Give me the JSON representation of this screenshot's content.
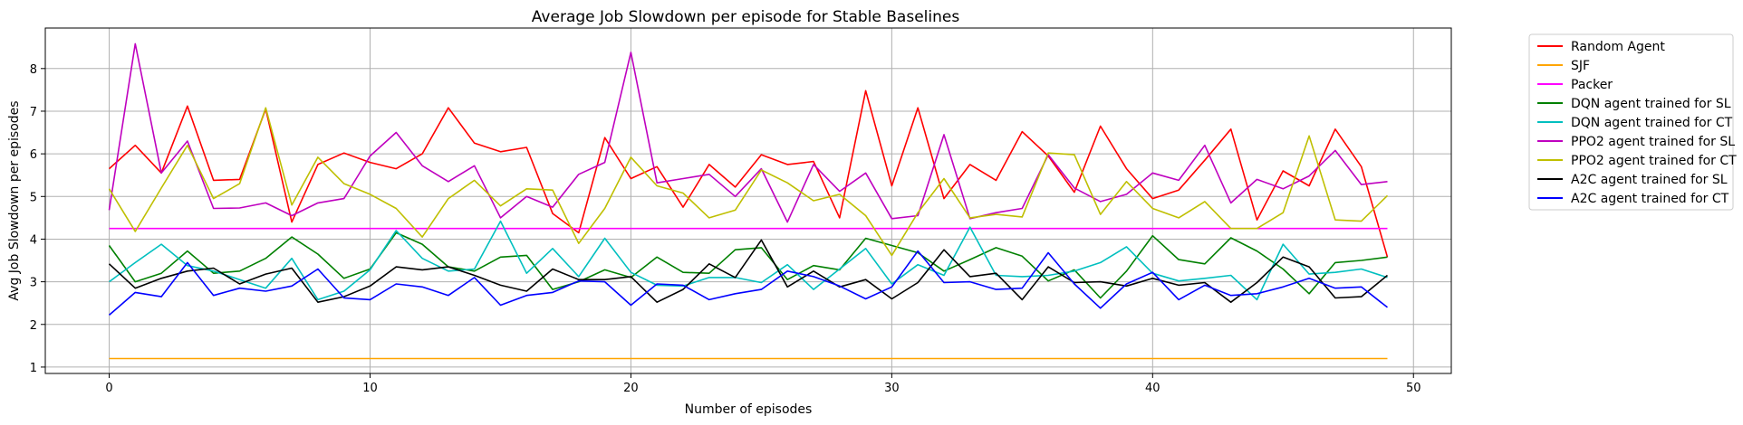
{
  "chart_data": {
    "type": "line",
    "title": "Average Job Slowdown per episode for Stable Baselines",
    "xlabel": "Number of episodes",
    "ylabel": "Avg Job Slowdown per episodes",
    "xlim": [
      -2.45,
      51.45
    ],
    "ylim": [
      0.85,
      8.95
    ],
    "xticks": [
      0,
      10,
      20,
      30,
      40,
      50
    ],
    "yticks": [
      1,
      2,
      3,
      4,
      5,
      6,
      7,
      8
    ],
    "grid": true,
    "legend_position": "outside-top-right",
    "x": [
      0,
      1,
      2,
      3,
      4,
      5,
      6,
      7,
      8,
      9,
      10,
      11,
      12,
      13,
      14,
      15,
      16,
      17,
      18,
      19,
      20,
      21,
      22,
      23,
      24,
      25,
      26,
      27,
      28,
      29,
      30,
      31,
      32,
      33,
      34,
      35,
      36,
      37,
      38,
      39,
      40,
      41,
      42,
      43,
      44,
      45,
      46,
      47,
      48,
      49
    ],
    "series": [
      {
        "name": "Random Agent",
        "color": "#ff0000",
        "values": [
          5.65,
          6.2,
          5.55,
          7.12,
          5.38,
          5.4,
          7.05,
          4.4,
          5.75,
          6.02,
          5.8,
          5.65,
          6.0,
          7.08,
          6.25,
          6.05,
          6.15,
          4.6,
          4.15,
          6.38,
          5.42,
          5.7,
          4.75,
          5.75,
          5.22,
          5.98,
          5.75,
          5.82,
          4.5,
          7.48,
          5.25,
          7.08,
          4.95,
          5.75,
          5.38,
          6.52,
          5.95,
          5.1,
          6.65,
          5.65,
          4.95,
          5.15,
          5.85,
          6.58,
          4.45,
          5.6,
          5.25,
          6.58,
          5.7,
          3.58
        ]
      },
      {
        "name": "SJF",
        "color": "#ffa500",
        "values": [
          1.2,
          1.2,
          1.2,
          1.2,
          1.2,
          1.2,
          1.2,
          1.2,
          1.2,
          1.2,
          1.2,
          1.2,
          1.2,
          1.2,
          1.2,
          1.2,
          1.2,
          1.2,
          1.2,
          1.2,
          1.2,
          1.2,
          1.2,
          1.2,
          1.2,
          1.2,
          1.2,
          1.2,
          1.2,
          1.2,
          1.2,
          1.2,
          1.2,
          1.2,
          1.2,
          1.2,
          1.2,
          1.2,
          1.2,
          1.2,
          1.2,
          1.2,
          1.2,
          1.2,
          1.2,
          1.2,
          1.2,
          1.2,
          1.2,
          1.2
        ]
      },
      {
        "name": "Packer",
        "color": "#ff00ff",
        "values": [
          4.25,
          4.25,
          4.25,
          4.25,
          4.25,
          4.25,
          4.25,
          4.25,
          4.25,
          4.25,
          4.25,
          4.25,
          4.25,
          4.25,
          4.25,
          4.25,
          4.25,
          4.25,
          4.25,
          4.25,
          4.25,
          4.25,
          4.25,
          4.25,
          4.25,
          4.25,
          4.25,
          4.25,
          4.25,
          4.25,
          4.25,
          4.25,
          4.25,
          4.25,
          4.25,
          4.25,
          4.25,
          4.25,
          4.25,
          4.25,
          4.25,
          4.25,
          4.25,
          4.25,
          4.25,
          4.25,
          4.25,
          4.25,
          4.25,
          4.25
        ]
      },
      {
        "name": "DQN agent trained for SL",
        "color": "#008000",
        "values": [
          3.85,
          3.0,
          3.2,
          3.72,
          3.2,
          3.25,
          3.55,
          4.05,
          3.65,
          3.08,
          3.3,
          4.15,
          3.88,
          3.35,
          3.25,
          3.58,
          3.62,
          2.82,
          3.0,
          3.28,
          3.1,
          3.58,
          3.22,
          3.2,
          3.75,
          3.8,
          3.05,
          3.38,
          3.28,
          4.02,
          3.85,
          3.68,
          3.25,
          3.52,
          3.8,
          3.6,
          3.02,
          3.28,
          2.62,
          3.25,
          4.08,
          3.52,
          3.42,
          4.03,
          3.72,
          3.3,
          2.72,
          3.45,
          3.5,
          3.58
        ]
      },
      {
        "name": "DQN agent trained for CT",
        "color": "#00bfbf",
        "values": [
          3.0,
          3.45,
          3.88,
          3.38,
          3.25,
          3.05,
          2.85,
          3.55,
          2.58,
          2.78,
          3.28,
          4.2,
          3.55,
          3.25,
          3.3,
          4.42,
          3.2,
          3.78,
          3.12,
          4.02,
          3.22,
          2.92,
          2.9,
          3.1,
          3.1,
          2.98,
          3.4,
          2.82,
          3.3,
          3.78,
          2.95,
          3.4,
          3.15,
          4.28,
          3.15,
          3.12,
          3.15,
          3.25,
          3.45,
          3.82,
          3.2,
          3.02,
          3.08,
          3.15,
          2.58,
          3.88,
          3.18,
          3.22,
          3.3,
          3.1
        ]
      },
      {
        "name": "PPO2 agent trained for SL",
        "color": "#bf00bf",
        "values": [
          4.68,
          8.58,
          5.55,
          6.3,
          4.72,
          4.73,
          4.85,
          4.55,
          4.85,
          4.95,
          5.95,
          6.5,
          5.72,
          5.35,
          5.72,
          4.5,
          5.0,
          4.75,
          5.52,
          5.8,
          8.38,
          5.32,
          5.42,
          5.52,
          5.0,
          5.65,
          4.4,
          5.75,
          5.12,
          5.55,
          4.48,
          4.55,
          6.45,
          4.48,
          4.62,
          4.72,
          5.98,
          5.2,
          4.88,
          5.05,
          5.55,
          5.38,
          6.2,
          4.85,
          5.4,
          5.18,
          5.48,
          6.08,
          5.28,
          5.35
        ]
      },
      {
        "name": "PPO2 agent trained for CT",
        "color": "#bfbf00",
        "values": [
          5.18,
          4.18,
          5.2,
          6.2,
          4.95,
          5.3,
          7.08,
          4.8,
          5.92,
          5.3,
          5.05,
          4.72,
          4.05,
          4.95,
          5.38,
          4.78,
          5.18,
          5.15,
          3.9,
          4.72,
          5.92,
          5.25,
          5.08,
          4.5,
          4.68,
          5.62,
          5.32,
          4.9,
          5.05,
          4.55,
          3.62,
          4.62,
          5.42,
          4.5,
          4.58,
          4.52,
          6.02,
          5.98,
          4.58,
          5.35,
          4.72,
          4.5,
          4.88,
          4.25,
          4.25,
          4.62,
          6.42,
          4.45,
          4.42,
          5.02
        ]
      },
      {
        "name": "A2C agent trained for SL",
        "color": "#000000",
        "values": [
          3.42,
          2.85,
          3.08,
          3.25,
          3.32,
          2.95,
          3.18,
          3.32,
          2.52,
          2.65,
          2.9,
          3.35,
          3.28,
          3.35,
          3.15,
          2.92,
          2.78,
          3.3,
          3.05,
          3.05,
          3.12,
          2.52,
          2.82,
          3.42,
          3.1,
          3.98,
          2.88,
          3.25,
          2.88,
          3.05,
          2.6,
          2.98,
          3.75,
          3.12,
          3.2,
          2.58,
          3.35,
          2.98,
          3.0,
          2.9,
          3.08,
          2.92,
          2.98,
          2.52,
          2.98,
          3.58,
          3.35,
          2.62,
          2.65,
          3.15
        ]
      },
      {
        "name": "A2C agent trained for CT",
        "color": "#0000ff",
        "values": [
          2.22,
          2.75,
          2.65,
          3.45,
          2.68,
          2.85,
          2.78,
          2.9,
          3.3,
          2.62,
          2.58,
          2.95,
          2.88,
          2.68,
          3.1,
          2.45,
          2.68,
          2.75,
          3.02,
          3.0,
          2.45,
          2.95,
          2.92,
          2.58,
          2.72,
          2.82,
          3.25,
          3.12,
          2.9,
          2.6,
          2.88,
          3.72,
          2.98,
          3.0,
          2.82,
          2.85,
          3.68,
          2.95,
          2.38,
          2.95,
          3.22,
          2.58,
          2.92,
          2.68,
          2.72,
          2.88,
          3.08,
          2.85,
          2.88,
          2.4
        ]
      }
    ]
  }
}
